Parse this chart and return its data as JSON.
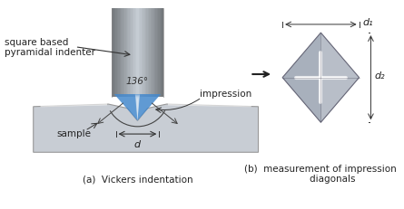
{
  "bg_color": "#ffffff",
  "title": "",
  "angle_label": "136°",
  "label_indenter": "square based\npyramidal indenter",
  "label_d": "d",
  "label_impression": "impression",
  "label_sample": "sample",
  "label_d1": "d₁",
  "label_d2": "d₂",
  "caption_a": "(a)  Vickers indentation",
  "caption_b": "(b)  measurement of impression\n        diagonals",
  "cylinder_color_left": "#a0a8b0",
  "cylinder_color_mid": "#d8dde2",
  "cylinder_color_right": "#888e96",
  "sample_color": "#c8cdd4",
  "blue_color": "#4488cc",
  "diamond_light": "#e0e4e8",
  "diamond_dark": "#8890a0"
}
